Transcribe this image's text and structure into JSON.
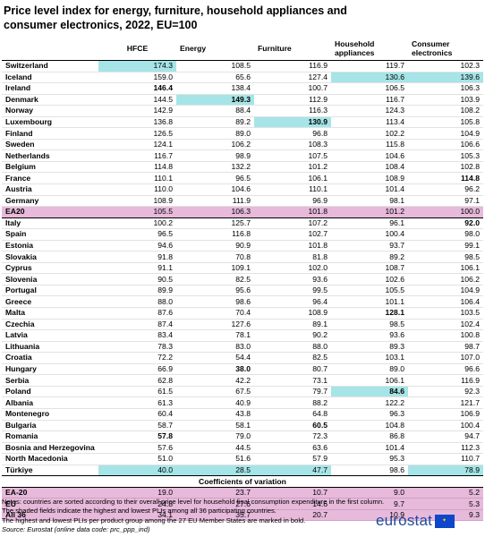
{
  "title": "Price level index for energy, furniture, household appliances and consumer electronics, 2022, EU=100",
  "headers": [
    "",
    "HFCE",
    "Energy",
    "Furniture",
    "Household appliances",
    "Consumer electronics"
  ],
  "rows": [
    {
      "name": "Switzerland",
      "v": [
        "174.3",
        "108.5",
        "116.9",
        "119.7",
        "102.3"
      ],
      "hl": [
        0
      ],
      "bold": []
    },
    {
      "name": "Iceland",
      "v": [
        "159.0",
        "65.6",
        "127.4",
        "130.6",
        "139.6"
      ],
      "hl": [
        3,
        4
      ],
      "bold": []
    },
    {
      "name": "Ireland",
      "v": [
        "146.4",
        "138.4",
        "100.7",
        "106.5",
        "106.3"
      ],
      "hl": [],
      "bold": [
        0
      ]
    },
    {
      "name": "Denmark",
      "v": [
        "144.5",
        "149.3",
        "112.9",
        "116.7",
        "103.9"
      ],
      "hl": [
        1
      ],
      "bold": [
        1
      ]
    },
    {
      "name": "Norway",
      "v": [
        "142.9",
        "88.4",
        "116.3",
        "124.3",
        "108.2"
      ],
      "hl": [],
      "bold": []
    },
    {
      "name": "Luxembourg",
      "v": [
        "136.8",
        "89.2",
        "130.9",
        "113.4",
        "105.8"
      ],
      "hl": [
        2
      ],
      "bold": [
        2
      ]
    },
    {
      "name": "Finland",
      "v": [
        "126.5",
        "89.0",
        "96.8",
        "102.2",
        "104.9"
      ],
      "hl": [],
      "bold": []
    },
    {
      "name": "Sweden",
      "v": [
        "124.1",
        "106.2",
        "108.3",
        "115.8",
        "106.6"
      ],
      "hl": [],
      "bold": []
    },
    {
      "name": "Netherlands",
      "v": [
        "116.7",
        "98.9",
        "107.5",
        "104.6",
        "105.3"
      ],
      "hl": [],
      "bold": []
    },
    {
      "name": "Belgium",
      "v": [
        "114.8",
        "132.2",
        "101.2",
        "108.4",
        "102.8"
      ],
      "hl": [],
      "bold": []
    },
    {
      "name": "France",
      "v": [
        "110.1",
        "96.5",
        "106.1",
        "108.9",
        "114.8"
      ],
      "hl": [],
      "bold": [
        4
      ]
    },
    {
      "name": "Austria",
      "v": [
        "110.0",
        "104.6",
        "110.1",
        "101.4",
        "96.2"
      ],
      "hl": [],
      "bold": []
    },
    {
      "name": "Germany",
      "v": [
        "108.9",
        "111.9",
        "96.9",
        "98.1",
        "97.1"
      ],
      "hl": [],
      "bold": []
    },
    {
      "name": "EA20",
      "v": [
        "105.5",
        "106.3",
        "101.8",
        "101.2",
        "100.0"
      ],
      "hl": [],
      "bold": [],
      "agg": true
    },
    {
      "name": "Italy",
      "v": [
        "100.2",
        "125.7",
        "107.2",
        "96.1",
        "92.0"
      ],
      "hl": [],
      "bold": [
        4
      ]
    },
    {
      "name": "Spain",
      "v": [
        "96.5",
        "116.8",
        "102.7",
        "100.4",
        "98.0"
      ],
      "hl": [],
      "bold": []
    },
    {
      "name": "Estonia",
      "v": [
        "94.6",
        "90.9",
        "101.8",
        "93.7",
        "99.1"
      ],
      "hl": [],
      "bold": []
    },
    {
      "name": "Slovakia",
      "v": [
        "91.8",
        "70.8",
        "81.8",
        "89.2",
        "98.5"
      ],
      "hl": [],
      "bold": []
    },
    {
      "name": "Cyprus",
      "v": [
        "91.1",
        "109.1",
        "102.0",
        "108.7",
        "106.1"
      ],
      "hl": [],
      "bold": []
    },
    {
      "name": "Slovenia",
      "v": [
        "90.5",
        "82.5",
        "93.6",
        "102.6",
        "106.2"
      ],
      "hl": [],
      "bold": []
    },
    {
      "name": "Portugal",
      "v": [
        "89.9",
        "95.6",
        "99.5",
        "105.5",
        "104.9"
      ],
      "hl": [],
      "bold": []
    },
    {
      "name": "Greece",
      "v": [
        "88.0",
        "98.6",
        "96.4",
        "101.1",
        "106.4"
      ],
      "hl": [],
      "bold": []
    },
    {
      "name": "Malta",
      "v": [
        "87.6",
        "70.4",
        "108.9",
        "128.1",
        "103.5"
      ],
      "hl": [],
      "bold": [
        3
      ]
    },
    {
      "name": "Czechia",
      "v": [
        "87.4",
        "127.6",
        "89.1",
        "98.5",
        "102.4"
      ],
      "hl": [],
      "bold": []
    },
    {
      "name": "Latvia",
      "v": [
        "83.4",
        "78.1",
        "90.2",
        "93.6",
        "100.8"
      ],
      "hl": [],
      "bold": []
    },
    {
      "name": "Lithuania",
      "v": [
        "78.3",
        "83.0",
        "88.0",
        "89.3",
        "98.7"
      ],
      "hl": [],
      "bold": []
    },
    {
      "name": "Croatia",
      "v": [
        "72.2",
        "54.4",
        "82.5",
        "103.1",
        "107.0"
      ],
      "hl": [],
      "bold": []
    },
    {
      "name": "Hungary",
      "v": [
        "66.9",
        "38.0",
        "80.7",
        "89.0",
        "96.6"
      ],
      "hl": [],
      "bold": [
        1
      ]
    },
    {
      "name": "Serbia",
      "v": [
        "62.8",
        "42.2",
        "73.1",
        "106.1",
        "116.9"
      ],
      "hl": [],
      "bold": []
    },
    {
      "name": "Poland",
      "v": [
        "61.5",
        "67.5",
        "79.7",
        "84.6",
        "92.3"
      ],
      "hl": [
        3
      ],
      "bold": [
        3
      ]
    },
    {
      "name": "Albania",
      "v": [
        "61.3",
        "40.9",
        "88.2",
        "122.2",
        "121.7"
      ],
      "hl": [],
      "bold": []
    },
    {
      "name": "Montenegro",
      "v": [
        "60.4",
        "43.8",
        "64.8",
        "96.3",
        "106.9"
      ],
      "hl": [],
      "bold": []
    },
    {
      "name": "Bulgaria",
      "v": [
        "58.7",
        "58.1",
        "60.5",
        "104.8",
        "100.4"
      ],
      "hl": [],
      "bold": [
        2
      ]
    },
    {
      "name": "Romania",
      "v": [
        "57.8",
        "79.0",
        "72.3",
        "86.8",
        "94.7"
      ],
      "hl": [],
      "bold": [
        0
      ]
    },
    {
      "name": "Bosnia and Herzegovina",
      "v": [
        "57.6",
        "44.5",
        "63.6",
        "101.4",
        "112.3"
      ],
      "hl": [],
      "bold": []
    },
    {
      "name": "North Macedonia",
      "v": [
        "51.0",
        "51.6",
        "57.9",
        "95.3",
        "110.7"
      ],
      "hl": [],
      "bold": []
    },
    {
      "name": "Türkiye",
      "v": [
        "40.0",
        "28.5",
        "47.7",
        "98.6",
        "78.9"
      ],
      "hl": [
        0,
        1,
        2,
        4
      ],
      "bold": []
    }
  ],
  "cv_title": "Coefficients of variation",
  "cv_rows": [
    {
      "name": "EA-20",
      "v": [
        "19.0",
        "23.7",
        "10.7",
        "9.0",
        "5.2"
      ]
    },
    {
      "name": "EU",
      "v": [
        "24.8",
        "27.6",
        "14.6",
        "9.7",
        "5.3"
      ]
    },
    {
      "name": "All 36",
      "v": [
        "34.1",
        "35.7",
        "20.7",
        "10.9",
        "9.3"
      ]
    }
  ],
  "notes": [
    "Notes: countries are sorted according to their overall price level for household final consumption expenditure in the first column.",
    "The shaded fields indicate the highest and lowest PLIs among all 36 participating countries.",
    "The highest and lowest PLIs per product group among the 27 EU Member States are marked in bold."
  ],
  "source": "Source: Eurostat (online data code: prc_ppp_ind)",
  "logo_text": "eurostat",
  "colors": {
    "highlight": "#a5e5e7",
    "aggregate": "#e7b9db",
    "logo": "#1f4b9e"
  }
}
